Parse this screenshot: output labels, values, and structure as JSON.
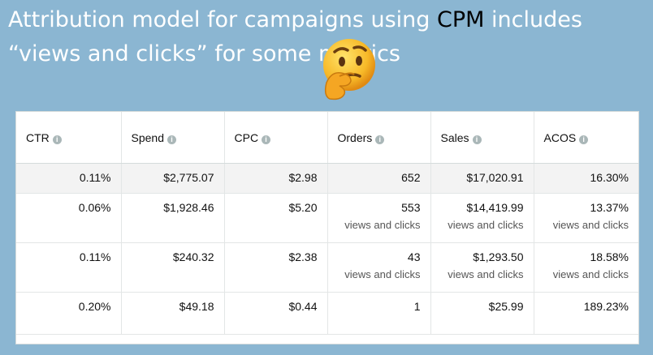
{
  "headline": {
    "part1": "Attribution model for campaigns using ",
    "accent": "CPM",
    "part2": " includes “views and clicks” for some metrics"
  },
  "emoji_icon": "thinking-face",
  "table": {
    "headers": [
      "CTR",
      "Spend",
      "CPC",
      "Orders",
      "Sales",
      "ACOS"
    ],
    "info_glyph": "i",
    "total": [
      "0.11%",
      "$2,775.07",
      "$2.98",
      "652",
      "$17,020.91",
      "16.30%"
    ],
    "rows": [
      {
        "ctr": "0.06%",
        "spend": "$1,928.46",
        "cpc": "$5.20",
        "orders": "553",
        "orders_note": "views and clicks",
        "sales": "$14,419.99",
        "sales_note": "views and clicks",
        "acos": "13.37%",
        "acos_note": "views and clicks"
      },
      {
        "ctr": "0.11%",
        "spend": "$240.32",
        "cpc": "$2.38",
        "orders": "43",
        "orders_note": "views and clicks",
        "sales": "$1,293.50",
        "sales_note": "views and clicks",
        "acos": "18.58%",
        "acos_note": "views and clicks"
      },
      {
        "ctr": "0.20%",
        "spend": "$49.18",
        "cpc": "$0.44",
        "orders": "1",
        "sales": "$25.99",
        "acos": "189.23%"
      }
    ]
  }
}
